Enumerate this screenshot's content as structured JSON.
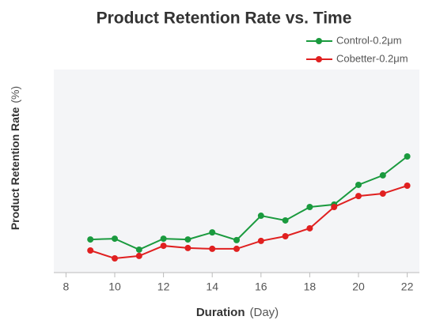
{
  "chart_data": {
    "type": "line",
    "title": "Product Retention Rate vs. Time",
    "x_label": "Duration",
    "x_unit": "(Day)",
    "y_label": "Product Retention Rate",
    "y_unit": "(%)",
    "x": [
      9,
      10,
      11,
      12,
      13,
      14,
      15,
      16,
      17,
      18,
      19,
      20,
      21,
      22
    ],
    "series": [
      {
        "name": "Control-0.2μm",
        "color": "#1a9a3e",
        "values": [
          16.3,
          16.7,
          11.3,
          16.7,
          16.3,
          19.8,
          16.0,
          28.0,
          25.7,
          32.3,
          33.5,
          43.2,
          47.9,
          57.2
        ]
      },
      {
        "name": "Cobetter-0.2μm",
        "color": "#e02020",
        "values": [
          10.9,
          7.0,
          8.2,
          13.2,
          12.1,
          11.7,
          11.7,
          15.6,
          17.9,
          21.8,
          32.3,
          37.7,
          38.9,
          42.8
        ]
      }
    ],
    "xlim": [
      7.5,
      22.5
    ],
    "xticks": [
      8,
      10,
      12,
      14,
      16,
      18,
      20,
      22
    ],
    "ylim": [
      0,
      100
    ],
    "legend": "top-right"
  }
}
